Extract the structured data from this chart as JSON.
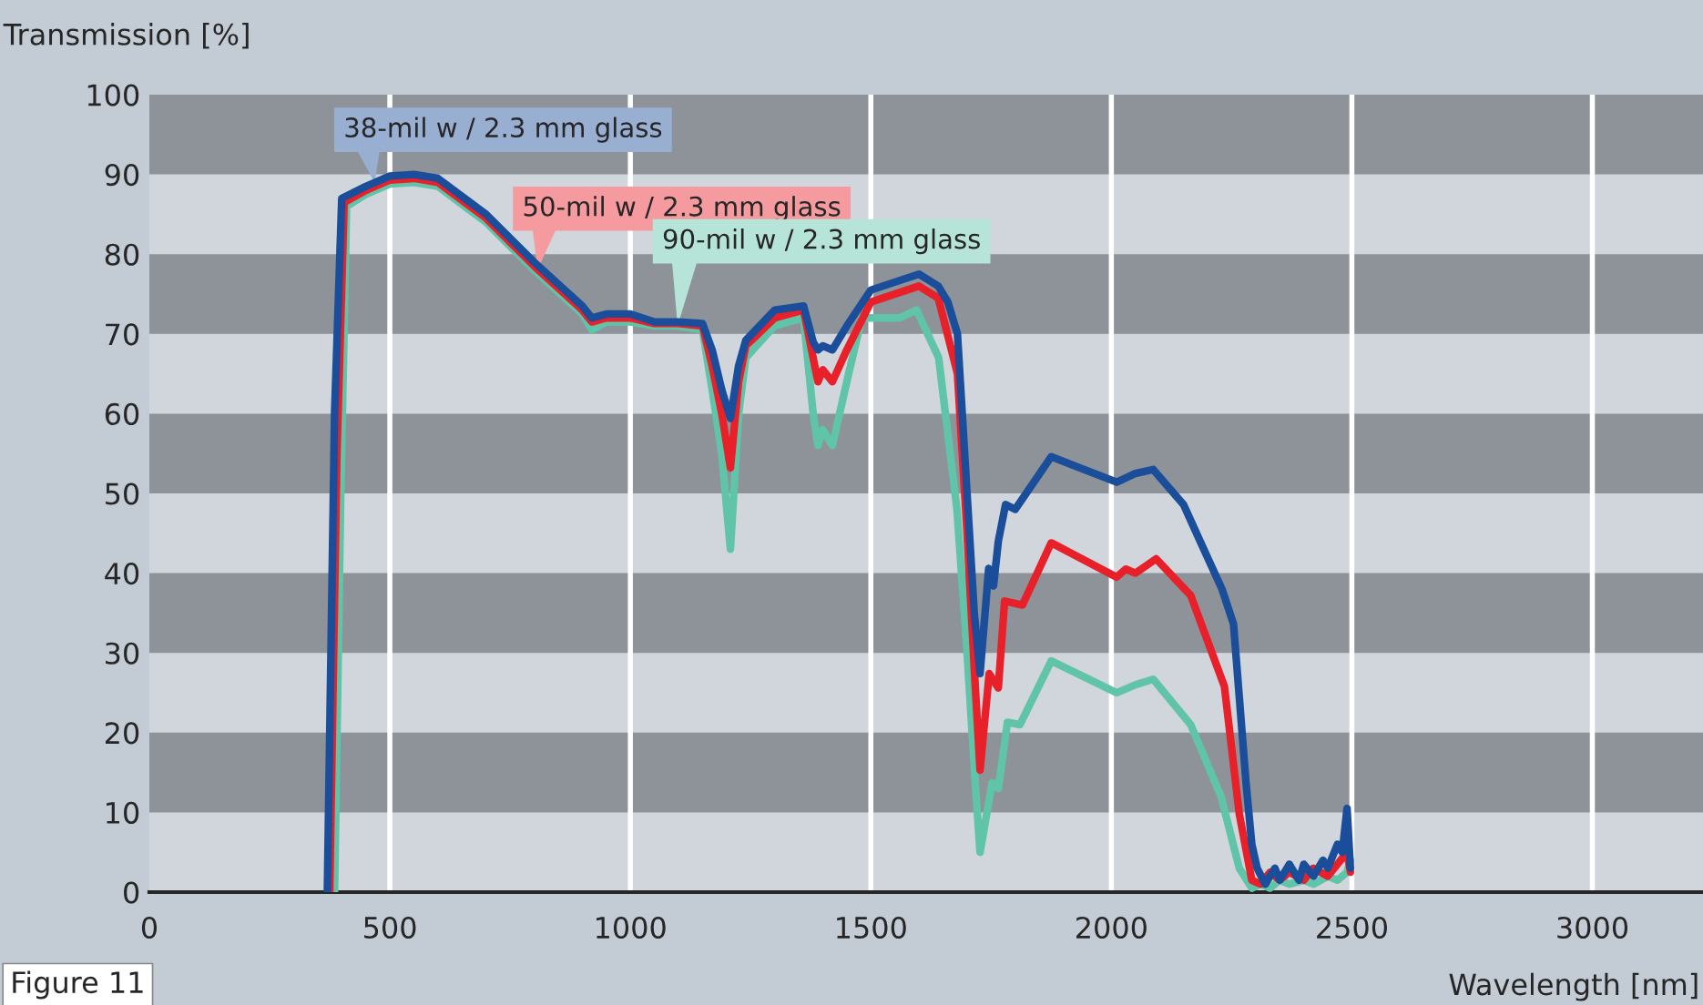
{
  "chart_data": {
    "type": "line",
    "ylabel": "Transmission [%]",
    "xlabel": "Wavelength [nm]",
    "annotations": [
      "Figure 11"
    ],
    "xlim": [
      0,
      3230
    ],
    "ylim": [
      0,
      100
    ],
    "xticks": [
      0,
      500,
      1000,
      1500,
      2000,
      2500,
      3000
    ],
    "yticks": [
      0,
      10,
      20,
      30,
      40,
      50,
      60,
      70,
      80,
      90,
      100
    ],
    "grid": "x",
    "bands": [
      {
        "axis": "y",
        "from": 10,
        "to": 20,
        "color": "#8d9398"
      },
      {
        "axis": "y",
        "from": 30,
        "to": 40,
        "color": "#8d9398"
      },
      {
        "axis": "y",
        "from": 50,
        "to": 60,
        "color": "#8d9398"
      },
      {
        "axis": "y",
        "from": 70,
        "to": 80,
        "color": "#8d9398"
      },
      {
        "axis": "y",
        "from": 90,
        "to": 100,
        "color": "#8d9398"
      }
    ],
    "series": [
      {
        "name": "38-mil w / 2.3 mm glass",
        "color": "#1a4e9a",
        "x": [
          370,
          385,
          400,
          450,
          500,
          550,
          600,
          700,
          800,
          900,
          920,
          950,
          1000,
          1050,
          1100,
          1150,
          1170,
          1190,
          1208,
          1225,
          1240,
          1300,
          1360,
          1380,
          1390,
          1400,
          1420,
          1450,
          1500,
          1550,
          1600,
          1640,
          1660,
          1680,
          1700,
          1715,
          1727,
          1745,
          1755,
          1765,
          1780,
          1800,
          1875,
          2011,
          2050,
          2087,
          2150,
          2189,
          2230,
          2254,
          2280,
          2292,
          2303,
          2320,
          2340,
          2350,
          2370,
          2390,
          2400,
          2420,
          2440,
          2450,
          2470,
          2480,
          2490,
          2497
        ],
        "values": [
          0,
          60,
          87,
          88.5,
          89.8,
          90,
          89.5,
          85,
          79,
          73.5,
          72,
          72.5,
          72.5,
          71.5,
          71.5,
          71.3,
          68,
          63,
          59.4,
          66,
          69.2,
          73,
          73.5,
          69,
          68,
          68.5,
          68,
          71,
          75.5,
          76.5,
          77.5,
          76,
          74,
          70,
          50,
          35,
          27.4,
          40.6,
          38.4,
          44,
          48.6,
          48,
          54.6,
          51.4,
          52.5,
          53,
          48.6,
          43.4,
          38,
          33.6,
          13.7,
          6,
          3,
          1,
          3,
          1.5,
          3.5,
          1.5,
          3.5,
          2,
          4,
          3,
          6,
          5,
          10.5,
          3
        ]
      },
      {
        "name": "50-mil w / 2.3 mm glass",
        "color": "#e8202a",
        "x": [
          375,
          390,
          405,
          450,
          500,
          550,
          600,
          700,
          800,
          900,
          920,
          950,
          1000,
          1050,
          1100,
          1150,
          1170,
          1190,
          1208,
          1225,
          1240,
          1300,
          1360,
          1380,
          1390,
          1400,
          1420,
          1450,
          1500,
          1550,
          1600,
          1640,
          1659,
          1680,
          1700,
          1715,
          1727,
          1746,
          1765,
          1778,
          1815,
          1875,
          2011,
          2030,
          2050,
          2093,
          2165,
          2235,
          2266,
          2292,
          2310,
          2330,
          2350,
          2370,
          2400,
          2420,
          2450,
          2470,
          2490,
          2497
        ],
        "values": [
          0,
          55,
          86.5,
          88,
          89.3,
          89.5,
          89,
          84.5,
          78.5,
          73,
          71.5,
          72,
          72,
          71.3,
          71.3,
          71,
          66,
          60,
          53.2,
          64,
          68.5,
          72,
          73,
          67,
          64,
          65.5,
          64,
          68,
          74,
          75,
          76,
          74.5,
          70,
          65,
          45,
          28,
          15.3,
          27.4,
          25.6,
          36.5,
          36,
          43.8,
          39.5,
          40.5,
          40,
          41.8,
          37.2,
          25.8,
          9.8,
          1.5,
          1,
          2.5,
          1.5,
          2.5,
          1.5,
          3,
          2,
          3.5,
          5,
          2.5
        ]
      },
      {
        "name": "90-mil w / 2.3 mm glass",
        "color": "#5fc4a8",
        "x": [
          385,
          398,
          410,
          450,
          500,
          550,
          600,
          700,
          800,
          900,
          920,
          950,
          1000,
          1050,
          1100,
          1150,
          1170,
          1190,
          1208,
          1225,
          1240,
          1300,
          1360,
          1380,
          1390,
          1400,
          1420,
          1450,
          1481,
          1520,
          1560,
          1595,
          1641,
          1679,
          1700,
          1717,
          1727,
          1752,
          1765,
          1784,
          1810,
          1875,
          2011,
          2050,
          2087,
          2165,
          2228,
          2266,
          2292,
          2310,
          2330,
          2350,
          2370,
          2400,
          2420,
          2450,
          2470,
          2490,
          2497
        ],
        "values": [
          0,
          50,
          86,
          87.5,
          88.8,
          89,
          88.5,
          84,
          78,
          72.5,
          70.5,
          71.5,
          71.5,
          71,
          71,
          70.5,
          63,
          55,
          43,
          60,
          67,
          71,
          72,
          60,
          56,
          58,
          56,
          64,
          72,
          72,
          72,
          73,
          67,
          48,
          30,
          13.7,
          5,
          13.7,
          13,
          21.3,
          21,
          29,
          25,
          26,
          26.7,
          21,
          12,
          3,
          0.5,
          1,
          0.5,
          1.5,
          1,
          1.5,
          1,
          2,
          1.5,
          2.5,
          4
        ]
      }
    ]
  }
}
